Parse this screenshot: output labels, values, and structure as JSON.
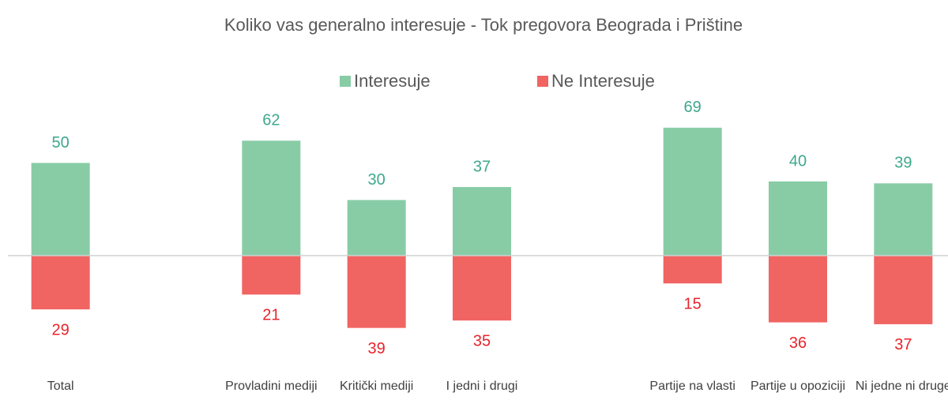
{
  "chart_data": {
    "type": "bar",
    "stacked": true,
    "title": "Koliko vas generalno interesuje - Tok pregovora Beograda i Prištine",
    "categories": [
      "Total",
      null,
      "Provladini mediji",
      "Kritički mediji",
      "I jedni i drugi",
      null,
      "Partije na vlasti",
      "Partije u opoziciji",
      "Ni jedne ni druge"
    ],
    "series": [
      {
        "name": "Interesuje",
        "color": "#88cca6",
        "label_color": "#3ea88c",
        "values": [
          50,
          null,
          62,
          30,
          37,
          null,
          69,
          40,
          39
        ]
      },
      {
        "name": "Ne Interesuje",
        "color": "#f06462",
        "label_color": "#e8242c",
        "values": [
          -29,
          null,
          -21,
          -39,
          -35,
          null,
          -15,
          -36,
          -37
        ],
        "value_labels": [
          "29",
          null,
          "21",
          "39",
          "35",
          null,
          "15",
          "36",
          "37"
        ]
      }
    ],
    "ylim": [
      -50,
      80
    ],
    "legend": "top"
  }
}
